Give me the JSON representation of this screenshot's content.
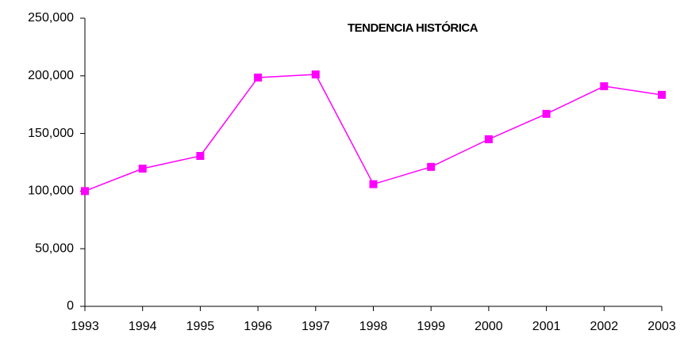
{
  "chart_data": {
    "type": "line",
    "title": "TENDENCIA HISTÓRICA",
    "categories": [
      "1993",
      "1994",
      "1995",
      "1996",
      "1997",
      "1998",
      "1999",
      "2000",
      "2001",
      "2002",
      "2003"
    ],
    "series": [
      {
        "name": null,
        "color": "#ff00ff",
        "values": [
          100000,
          119500,
          130500,
          198500,
          201200,
          106000,
          121000,
          145000,
          167000,
          191000,
          183500
        ]
      }
    ],
    "ylim": [
      0,
      250000
    ],
    "yticks": [
      0,
      {
        "value": 50000,
        "label": "50,000"
      },
      {
        "value": 100000,
        "label": "100,000"
      },
      {
        "value": 150000,
        "label": "150,000"
      },
      {
        "value": 200000,
        "label": "200,000"
      },
      {
        "value": 250000,
        "label": "250,000"
      }
    ],
    "grid": false
  }
}
